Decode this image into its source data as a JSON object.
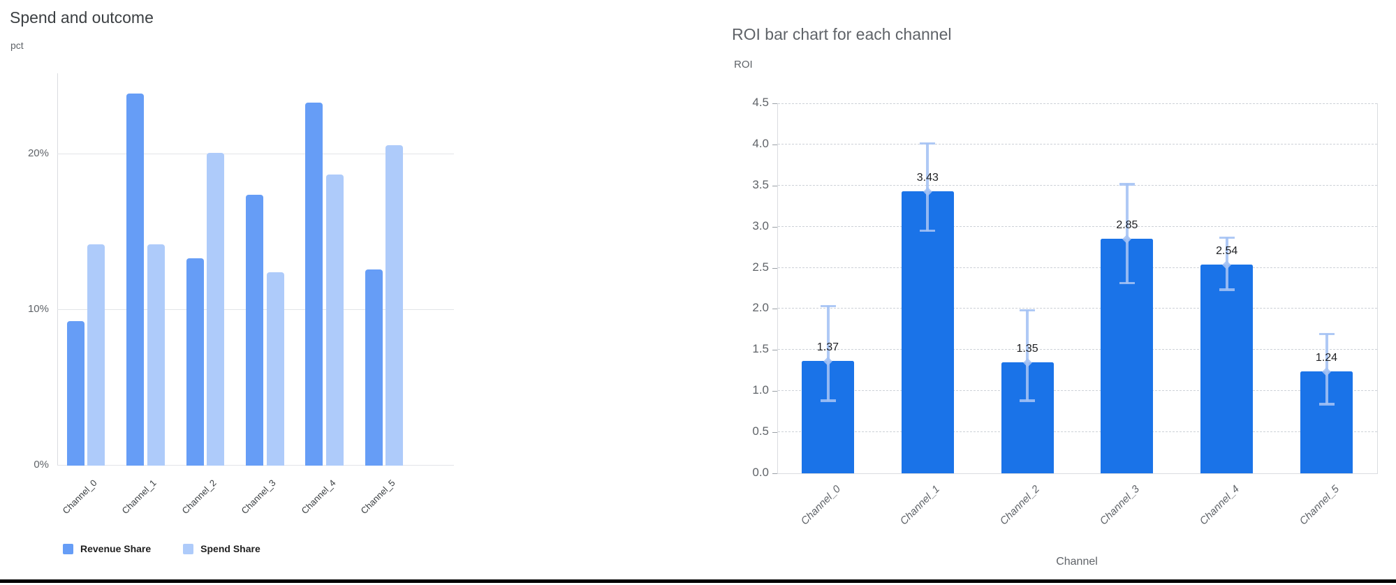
{
  "page": {
    "background": "#ffffff",
    "bottom_rule_color": "#000000"
  },
  "chart_data": [
    {
      "type": "bar",
      "title": "Spend and outcome",
      "ylabel": "pct",
      "xlabel": "",
      "categories": [
        "Channel_0",
        "Channel_1",
        "Channel_2",
        "Channel_3",
        "Channel_4",
        "Channel_5"
      ],
      "series": [
        {
          "name": "Revenue Share",
          "color": "#669df6",
          "values": [
            9.3,
            23.9,
            13.3,
            17.4,
            23.3,
            12.6
          ]
        },
        {
          "name": "Spend Share",
          "color": "#aecbfa",
          "values": [
            14.2,
            14.2,
            20.1,
            12.4,
            18.7,
            20.6
          ]
        }
      ],
      "yticks": [
        {
          "value": 0,
          "label": "0%"
        },
        {
          "value": 10,
          "label": "10%"
        },
        {
          "value": 20,
          "label": "20%"
        }
      ],
      "ylim": [
        0,
        25.2
      ],
      "grid": "horizontal-solid",
      "legend_position": "bottom"
    },
    {
      "type": "bar",
      "title": "ROI bar chart for each channel",
      "ylabel": "ROI",
      "xlabel": "Channel",
      "categories": [
        "Channel_0",
        "Channel_1",
        "Channel_2",
        "Channel_3",
        "Channel_4",
        "Channel_5"
      ],
      "values": [
        1.37,
        3.43,
        1.35,
        2.85,
        2.54,
        1.24
      ],
      "bar_labels": [
        "1.37",
        "3.43",
        "1.35",
        "2.85",
        "2.54",
        "1.24"
      ],
      "error_low": [
        0.88,
        2.95,
        0.88,
        2.31,
        2.23,
        0.84
      ],
      "error_high": [
        2.04,
        4.02,
        1.99,
        3.52,
        2.87,
        1.7
      ],
      "bar_color": "#1a73e8",
      "error_color": "#a4c2f4",
      "ylim": [
        0,
        4.5
      ],
      "ytick_step": 0.5,
      "ytick_labels": [
        "0.0",
        "0.5",
        "1.0",
        "1.5",
        "2.0",
        "2.5",
        "3.0",
        "3.5",
        "4.0",
        "4.5"
      ],
      "grid": "horizontal-dashed",
      "legend_position": "none"
    }
  ]
}
